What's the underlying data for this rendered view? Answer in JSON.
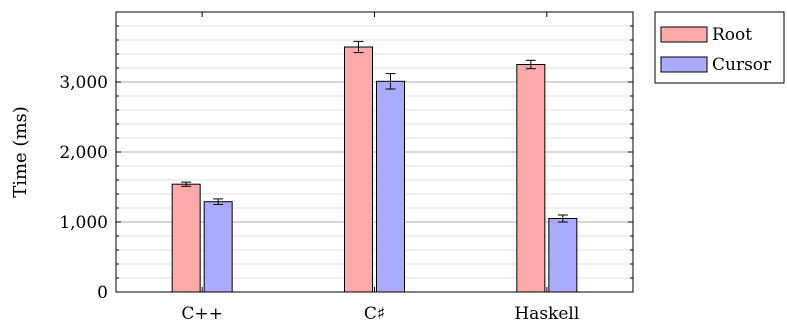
{
  "chart_data": {
    "type": "bar",
    "title": "",
    "xlabel": "",
    "ylabel": "Time (ms)",
    "ylim": [
      0,
      4000
    ],
    "yticks": [
      0,
      1000,
      2000,
      3000
    ],
    "ytick_labels": [
      "0",
      "1,000",
      "2,000",
      "3,000"
    ],
    "categories": [
      "C++",
      "C♯",
      "Haskell"
    ],
    "grid": "horizontal",
    "legend_position": "outside-top-right",
    "error_bars": true,
    "series": [
      {
        "name": "Root",
        "color": "#ffaaaa",
        "values": [
          1540,
          3500,
          3250
        ],
        "errors": [
          30,
          80,
          60
        ]
      },
      {
        "name": "Cursor",
        "color": "#aaaaff",
        "values": [
          1290,
          3010,
          1050
        ],
        "errors": [
          40,
          110,
          50
        ]
      }
    ]
  }
}
